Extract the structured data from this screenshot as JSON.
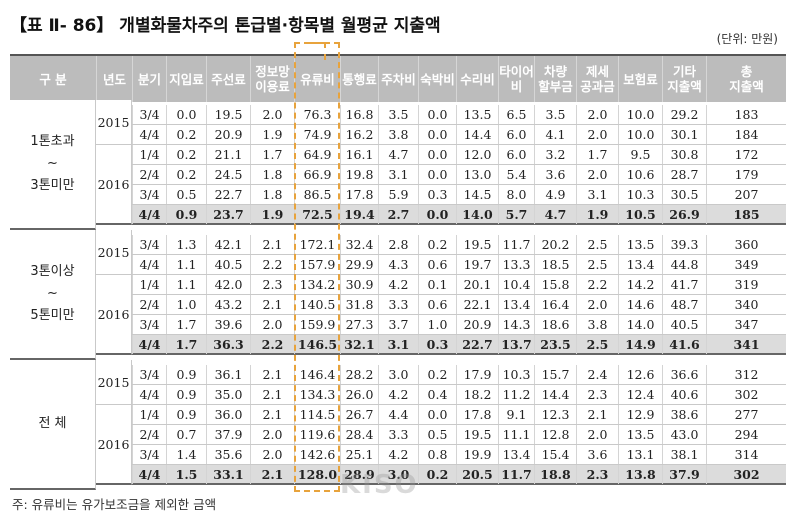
{
  "title": "【표 Ⅱ- 86】 개별화물차주의 톤급별·항목별 월평균 지출액",
  "unit": "(단위: 만원)",
  "columns": [
    "구 분",
    "년도",
    "분기",
    "지입료",
    "주선료",
    "정보망\n이용료",
    "유류비",
    "통행료",
    "주차비",
    "숙박비",
    "수리비",
    "타이어\n비",
    "차량\n할부금",
    "제세\n공과금",
    "보험료",
    "기타\n지출액",
    "총\n지출액"
  ],
  "groups": [
    {
      "label": "1톤초과\n~\n3톤미만",
      "years": [
        {
          "year": "2015",
          "rows": 2
        },
        {
          "year": "2016",
          "rows": 4
        }
      ],
      "rows": [
        [
          "3/4",
          "0.0",
          "19.5",
          "2.0",
          "76.3",
          "16.8",
          "3.5",
          "0.0",
          "13.5",
          "6.5",
          "3.5",
          "2.0",
          "10.0",
          "29.2",
          "183"
        ],
        [
          "4/4",
          "0.2",
          "20.9",
          "1.9",
          "74.9",
          "16.2",
          "3.8",
          "0.0",
          "14.4",
          "6.0",
          "4.1",
          "2.0",
          "10.0",
          "30.1",
          "184"
        ],
        [
          "1/4",
          "0.2",
          "21.1",
          "1.7",
          "64.9",
          "16.1",
          "4.7",
          "0.0",
          "12.0",
          "6.0",
          "3.2",
          "1.7",
          "9.5",
          "30.8",
          "172"
        ],
        [
          "2/4",
          "0.2",
          "24.5",
          "1.8",
          "66.9",
          "19.8",
          "3.1",
          "0.0",
          "13.0",
          "5.4",
          "3.6",
          "2.0",
          "10.6",
          "28.7",
          "179"
        ],
        [
          "3/4",
          "0.5",
          "22.7",
          "1.8",
          "86.5",
          "17.8",
          "5.9",
          "0.3",
          "14.5",
          "8.0",
          "4.9",
          "3.1",
          "10.3",
          "30.5",
          "207"
        ],
        [
          "4/4",
          "0.9",
          "23.7",
          "1.9",
          "72.5",
          "19.4",
          "2.7",
          "0.0",
          "14.0",
          "5.7",
          "4.7",
          "1.9",
          "10.5",
          "26.9",
          "185"
        ]
      ]
    },
    {
      "label": "3톤이상\n~\n5톤미만",
      "years": [
        {
          "year": "2015",
          "rows": 2
        },
        {
          "year": "2016",
          "rows": 4
        }
      ],
      "rows": [
        [
          "3/4",
          "1.3",
          "42.1",
          "2.1",
          "172.1",
          "32.4",
          "2.8",
          "0.2",
          "19.5",
          "11.7",
          "20.2",
          "2.5",
          "13.5",
          "39.3",
          "360"
        ],
        [
          "4/4",
          "1.1",
          "40.5",
          "2.2",
          "157.9",
          "29.9",
          "4.3",
          "0.6",
          "19.7",
          "13.3",
          "18.5",
          "2.5",
          "13.4",
          "44.8",
          "349"
        ],
        [
          "1/4",
          "1.1",
          "42.0",
          "2.3",
          "134.2",
          "30.9",
          "4.2",
          "0.1",
          "20.1",
          "10.4",
          "15.8",
          "2.2",
          "14.2",
          "41.7",
          "319"
        ],
        [
          "2/4",
          "1.0",
          "43.2",
          "2.1",
          "140.5",
          "31.8",
          "3.3",
          "0.6",
          "22.1",
          "13.4",
          "16.4",
          "2.0",
          "14.6",
          "48.7",
          "340"
        ],
        [
          "3/4",
          "1.7",
          "39.6",
          "2.0",
          "159.9",
          "27.3",
          "3.7",
          "1.0",
          "20.9",
          "14.3",
          "18.6",
          "3.8",
          "14.0",
          "40.5",
          "347"
        ],
        [
          "4/4",
          "1.7",
          "36.3",
          "2.2",
          "146.5",
          "32.1",
          "3.1",
          "0.3",
          "22.7",
          "13.7",
          "23.5",
          "2.5",
          "14.9",
          "41.6",
          "341"
        ]
      ]
    },
    {
      "label": "전    체",
      "years": [
        {
          "year": "2015",
          "rows": 2
        },
        {
          "year": "2016",
          "rows": 4
        }
      ],
      "rows": [
        [
          "3/4",
          "0.9",
          "36.1",
          "2.1",
          "146.4",
          "28.2",
          "3.0",
          "0.2",
          "17.9",
          "10.3",
          "15.7",
          "2.4",
          "12.6",
          "36.6",
          "312"
        ],
        [
          "4/4",
          "0.9",
          "35.0",
          "2.1",
          "134.3",
          "26.0",
          "4.2",
          "0.4",
          "18.2",
          "11.2",
          "14.4",
          "2.3",
          "12.4",
          "40.6",
          "302"
        ],
        [
          "1/4",
          "0.9",
          "36.0",
          "2.1",
          "114.5",
          "26.7",
          "4.4",
          "0.0",
          "17.8",
          "9.1",
          "12.3",
          "2.1",
          "12.9",
          "38.6",
          "277"
        ],
        [
          "2/4",
          "0.7",
          "37.9",
          "2.0",
          "119.6",
          "28.4",
          "3.3",
          "0.5",
          "19.5",
          "11.1",
          "12.8",
          "2.0",
          "13.5",
          "43.0",
          "294"
        ],
        [
          "3/4",
          "1.4",
          "35.6",
          "2.0",
          "142.6",
          "25.1",
          "4.2",
          "0.8",
          "19.9",
          "13.4",
          "15.4",
          "3.6",
          "13.1",
          "38.1",
          "314"
        ],
        [
          "4/4",
          "1.5",
          "33.1",
          "2.1",
          "128.0",
          "28.9",
          "3.0",
          "0.2",
          "20.5",
          "11.7",
          "18.8",
          "2.3",
          "13.8",
          "37.9",
          "302"
        ]
      ]
    }
  ],
  "note": "주: 유류비는 유가보조금을 제외한 금액",
  "watermark": "KISO",
  "colors": {
    "header_bg": "#bcbcbc",
    "total_bg": "#dcdcdc",
    "highlight": "#e8a33c"
  }
}
